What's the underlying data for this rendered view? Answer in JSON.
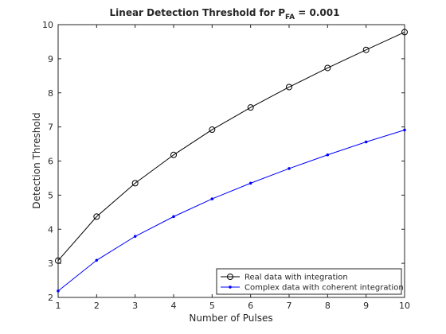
{
  "chart_data": {
    "type": "line",
    "title": "Linear Detection Threshold for P",
    "title_subscript": "FA",
    "title_suffix": " = 0.001",
    "xlabel": "Number of Pulses",
    "ylabel": "Detection Threshold",
    "xlim": [
      1,
      10
    ],
    "ylim": [
      2,
      10
    ],
    "xticks": [
      "1",
      "2",
      "3",
      "4",
      "5",
      "6",
      "7",
      "8",
      "9",
      "10"
    ],
    "yticks": [
      "2",
      "3",
      "4",
      "5",
      "6",
      "7",
      "8",
      "9",
      "10"
    ],
    "grid": false,
    "legend_position": "bottom-right",
    "x": [
      1,
      2,
      3,
      4,
      5,
      6,
      7,
      8,
      9,
      10
    ],
    "series": [
      {
        "name": "Real data with integration",
        "color": "#000000",
        "marker": "circle",
        "values": [
          3.08,
          4.37,
          5.35,
          6.18,
          6.92,
          7.57,
          8.17,
          8.73,
          9.26,
          9.78
        ]
      },
      {
        "name": "Complex data with coherent integration",
        "color": "#0000ff",
        "marker": "point",
        "values": [
          2.19,
          3.09,
          3.79,
          4.37,
          4.89,
          5.35,
          5.78,
          6.18,
          6.56,
          6.91
        ]
      }
    ]
  }
}
